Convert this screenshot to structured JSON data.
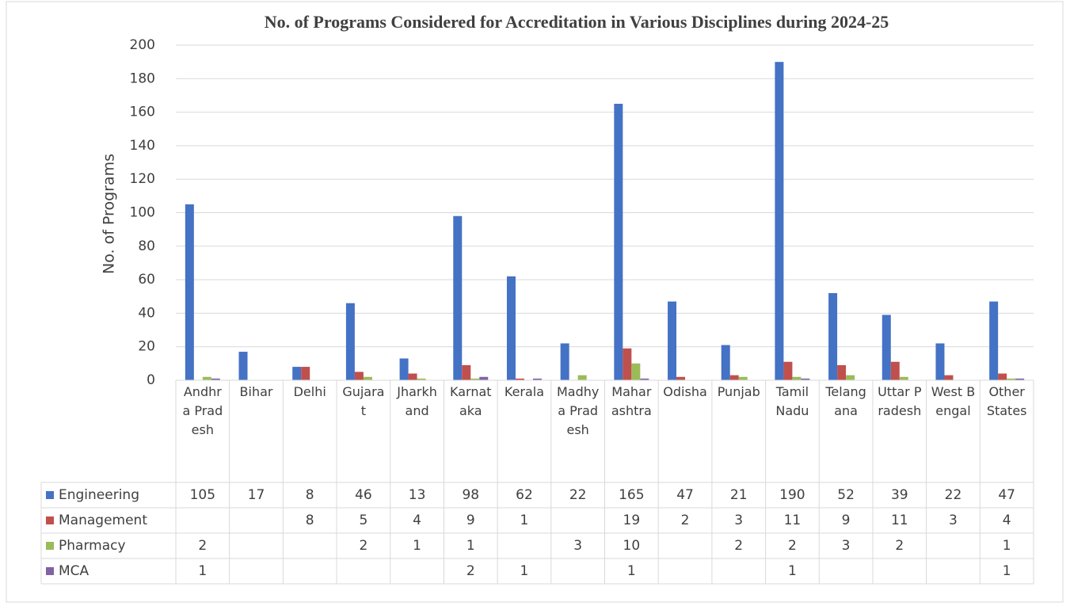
{
  "chart_data": {
    "type": "bar",
    "title": "No. of Programs Considered for Accreditation in Various Disciplines during 2024-25",
    "y_label": "No. of Programs",
    "categories": [
      "Andhra Pradesh",
      "Bihar",
      "Delhi",
      "Gujarat",
      "Jharkhand",
      "Karnataka",
      "Kerala",
      "Madhya Pradesh",
      "Maharashtra",
      "Odisha",
      "Punjab",
      "Tamil Nadu",
      "Telangana",
      "Uttar Pradesh",
      "West Bengal",
      "Other States"
    ],
    "series": [
      {
        "name": "Engineering",
        "color": "#4472c4",
        "values": [
          105,
          17,
          8,
          46,
          13,
          98,
          62,
          22,
          165,
          47,
          21,
          190,
          52,
          39,
          22,
          47
        ]
      },
      {
        "name": "Management",
        "color": "#c0504d",
        "values": [
          null,
          null,
          8,
          5,
          4,
          9,
          1,
          null,
          19,
          2,
          3,
          11,
          9,
          11,
          3,
          4
        ]
      },
      {
        "name": "Pharmacy",
        "color": "#9bbb59",
        "values": [
          2,
          null,
          null,
          2,
          1,
          1,
          null,
          3,
          10,
          null,
          2,
          2,
          3,
          2,
          null,
          1
        ]
      },
      {
        "name": "MCA",
        "color": "#8064a2",
        "values": [
          1,
          null,
          null,
          null,
          null,
          2,
          1,
          null,
          1,
          null,
          null,
          1,
          null,
          null,
          null,
          1
        ]
      }
    ],
    "ylim": [
      0,
      200
    ],
    "yticks": [
      0,
      20,
      40,
      60,
      80,
      100,
      120,
      140,
      160,
      180,
      200
    ],
    "grid": true,
    "data_table": true
  }
}
